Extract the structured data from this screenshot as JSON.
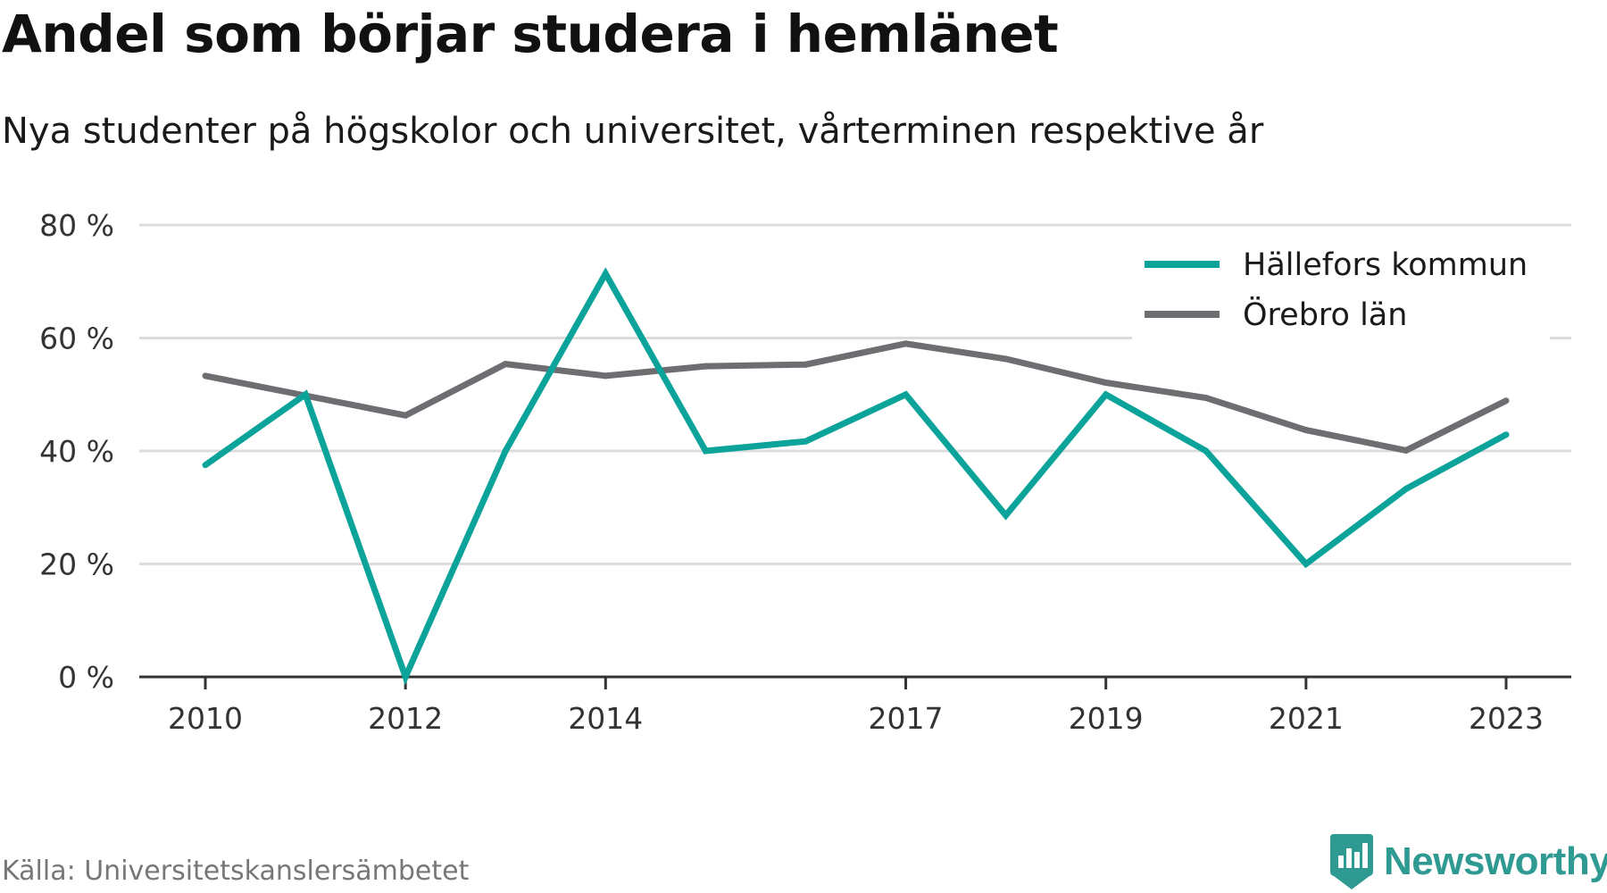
{
  "header": {
    "title": "Andel som börjar studera i hemlänet",
    "subtitle": "Nya studenter på högskolor och universitet, vårterminen respektive år"
  },
  "footer": {
    "source": "Källa: Universitetskanslersämbetet",
    "brand": "Newsworthy"
  },
  "colors": {
    "hallefors": "#0ba39a",
    "orebro": "#6d6d72",
    "grid": "#dcdcdc",
    "axis": "#333333",
    "brand": "#2f9a92"
  },
  "chart_data": {
    "type": "line",
    "title": "Andel som börjar studera i hemlänet",
    "subtitle": "Nya studenter på högskolor och universitet, vårterminen respektive år",
    "x": [
      2010,
      2011,
      2012,
      2013,
      2014,
      2015,
      2016,
      2017,
      2018,
      2019,
      2020,
      2021,
      2022,
      2023
    ],
    "series": [
      {
        "name": "Hällefors kommun",
        "color": "#0ba39a",
        "values": [
          37.5,
          50,
          0,
          40,
          71.4,
          40,
          41.7,
          50,
          28.6,
          50,
          40,
          20,
          33.3,
          42.9
        ]
      },
      {
        "name": "Örebro län",
        "color": "#6d6d72",
        "values": [
          53.3,
          49.8,
          46.3,
          55.4,
          53.3,
          55.0,
          55.3,
          59.0,
          56.3,
          52.1,
          49.4,
          43.7,
          40.1,
          48.9
        ]
      }
    ],
    "x_ticks": [
      {
        "value": 2010,
        "label": "2010"
      },
      {
        "value": 2012,
        "label": "2012"
      },
      {
        "value": 2014,
        "label": "2014"
      },
      {
        "value": 2017,
        "label": "2017"
      },
      {
        "value": 2019,
        "label": "2019"
      },
      {
        "value": 2021,
        "label": "2021"
      },
      {
        "value": 2023,
        "label": "2023"
      }
    ],
    "y_ticks": [
      {
        "value": 0,
        "label": "0 %"
      },
      {
        "value": 20,
        "label": "20 %"
      },
      {
        "value": 40,
        "label": "40 %"
      },
      {
        "value": 60,
        "label": "60 %"
      },
      {
        "value": 80,
        "label": "80 %"
      }
    ],
    "xlim": [
      2010,
      2023
    ],
    "ylim": [
      0,
      80
    ],
    "grid": "horizontal",
    "legend_position": "top-right",
    "xlabel": "",
    "ylabel": ""
  }
}
